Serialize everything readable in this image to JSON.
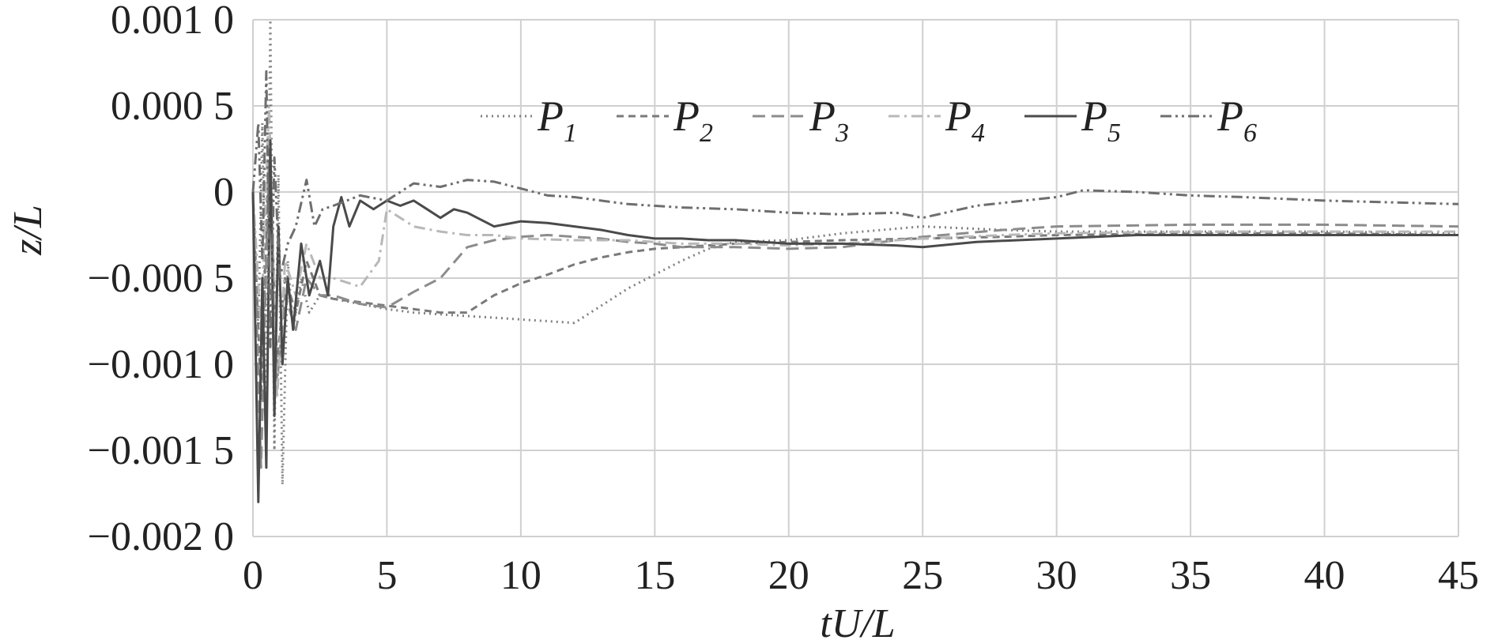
{
  "chart_data": {
    "type": "line",
    "xlabel": "tU/L",
    "ylabel": "z/L",
    "xlim": [
      0,
      45
    ],
    "ylim": [
      -0.002,
      0.001
    ],
    "grid": true,
    "legend_position": "top-center",
    "x_ticks": [
      "0",
      "5",
      "10",
      "15",
      "20",
      "25",
      "30",
      "35",
      "40",
      "45"
    ],
    "y_ticks": [
      "0.001 0",
      "0.000 5",
      "0",
      "−0.000 5",
      "−0.001 0",
      "−0.001 5",
      "−0.002 0"
    ],
    "series": [
      {
        "name": "P",
        "sub": "1",
        "style": "dotted",
        "color": "#808080",
        "x": [
          0,
          0.2,
          0.35,
          0.5,
          0.65,
          0.8,
          0.95,
          1.1,
          1.3,
          1.5,
          1.8,
          2.1,
          2.5,
          3,
          4,
          5,
          6,
          7,
          8,
          9,
          10,
          11,
          12,
          13,
          14,
          15,
          16,
          17,
          18,
          20,
          22,
          25,
          28,
          30,
          35,
          40,
          45
        ],
        "y": [
          0,
          -0.0008,
          0.0004,
          -0.0012,
          0.001,
          -0.0015,
          0.0001,
          -0.0017,
          -0.0004,
          -0.0008,
          -0.0005,
          -0.0007,
          -0.0006,
          -0.00062,
          -0.00065,
          -0.00068,
          -0.0007,
          -0.00071,
          -0.00072,
          -0.00073,
          -0.00074,
          -0.00075,
          -0.00076,
          -0.00066,
          -0.00056,
          -0.00048,
          -0.0004,
          -0.00033,
          -0.00029,
          -0.00028,
          -0.00024,
          -0.0002,
          -0.00022,
          -0.00023,
          -0.00023,
          -0.00023,
          -0.00024
        ]
      },
      {
        "name": "P",
        "sub": "2",
        "style": "dash-short",
        "color": "#7a7a7a",
        "x": [
          0,
          0.3,
          0.6,
          0.9,
          1.2,
          1.6,
          2.0,
          2.5,
          3,
          4,
          5,
          6,
          7,
          8,
          9,
          10,
          11,
          12,
          13,
          14,
          15,
          16,
          17,
          18,
          20,
          22,
          25,
          28,
          30,
          35,
          40,
          45
        ],
        "y": [
          0,
          -0.0012,
          0.0003,
          -0.001,
          -0.0005,
          -0.0007,
          -0.0004,
          -0.0006,
          -0.00062,
          -0.00064,
          -0.00066,
          -0.00068,
          -0.0007,
          -0.0007,
          -0.0006,
          -0.00053,
          -0.00048,
          -0.00042,
          -0.00038,
          -0.00035,
          -0.00033,
          -0.00032,
          -0.00031,
          -0.0003,
          -0.00029,
          -0.00028,
          -0.00027,
          -0.00026,
          -0.00025,
          -0.00024,
          -0.00024,
          -0.00025
        ]
      },
      {
        "name": "P",
        "sub": "3",
        "style": "dash-long",
        "color": "#8c8c8c",
        "x": [
          0,
          0.3,
          0.6,
          0.9,
          1.2,
          1.6,
          2.0,
          2.5,
          3,
          4,
          5,
          6,
          7,
          8,
          9,
          10,
          11,
          12,
          13,
          14,
          15,
          16,
          17,
          18,
          20,
          22,
          25,
          28,
          30,
          35,
          40,
          45
        ],
        "y": [
          0,
          -0.0016,
          0.0002,
          -0.0011,
          -0.0006,
          -0.0008,
          -0.0005,
          -0.0006,
          -0.0006,
          -0.00065,
          -0.00067,
          -0.00058,
          -0.0005,
          -0.00032,
          -0.00028,
          -0.00026,
          -0.00025,
          -0.00026,
          -0.00027,
          -0.00029,
          -0.0003,
          -0.00032,
          -0.00032,
          -0.00032,
          -0.00033,
          -0.00032,
          -0.00026,
          -0.00022,
          -0.0002,
          -0.00019,
          -0.00019,
          -0.0002
        ]
      },
      {
        "name": "P",
        "sub": "4",
        "style": "dash-dot-light",
        "color": "#b8b8b8",
        "x": [
          0,
          0.3,
          0.6,
          0.9,
          1.2,
          1.6,
          2.0,
          2.5,
          3,
          4,
          4.7,
          5,
          5.5,
          6,
          7,
          8,
          9,
          10,
          12,
          14,
          15,
          16,
          18,
          20,
          22,
          25,
          28,
          30,
          35,
          40,
          45
        ],
        "y": [
          0,
          -0.0008,
          0.0005,
          -0.0012,
          -0.0004,
          -0.0006,
          -0.0003,
          -0.0005,
          -0.0005,
          -0.00055,
          -0.0004,
          -0.0001,
          -0.00015,
          -0.0002,
          -0.00023,
          -0.00025,
          -0.00025,
          -0.00027,
          -0.00028,
          -0.00028,
          -0.00029,
          -0.0003,
          -0.0003,
          -0.00031,
          -0.0003,
          -0.00027,
          -0.00025,
          -0.00024,
          -0.00023,
          -0.00023,
          -0.00023
        ]
      },
      {
        "name": "P",
        "sub": "5",
        "style": "solid",
        "color": "#4a4a4a",
        "x": [
          0,
          0.2,
          0.35,
          0.5,
          0.65,
          0.8,
          0.95,
          1.1,
          1.3,
          1.5,
          1.8,
          2.1,
          2.5,
          2.8,
          3.0,
          3.3,
          3.6,
          4,
          4.5,
          5,
          5.5,
          6,
          6.5,
          7,
          7.5,
          8,
          9,
          10,
          11,
          12,
          13,
          14,
          15,
          16,
          17,
          18,
          20,
          22,
          24,
          25,
          27,
          30,
          33,
          35,
          40,
          45
        ],
        "y": [
          0,
          -0.0018,
          -0.0005,
          -0.0016,
          0.0003,
          -0.0013,
          -0.0002,
          -0.001,
          -0.0005,
          -0.0008,
          -0.0003,
          -0.0006,
          -0.0004,
          -0.0006,
          -0.0002,
          -3e-05,
          -0.0002,
          -5e-05,
          -0.0001,
          -5e-05,
          -8e-05,
          -5e-05,
          -0.0001,
          -0.00015,
          -0.0001,
          -0.00012,
          -0.0002,
          -0.00017,
          -0.00018,
          -0.0002,
          -0.00022,
          -0.00025,
          -0.00027,
          -0.00027,
          -0.00028,
          -0.00028,
          -0.0003,
          -0.0003,
          -0.00031,
          -0.00032,
          -0.00029,
          -0.00027,
          -0.00025,
          -0.00025,
          -0.00025,
          -0.00025
        ]
      },
      {
        "name": "P",
        "sub": "6",
        "style": "dash-dot-dot",
        "color": "#6e6e6e",
        "x": [
          0,
          0.2,
          0.35,
          0.5,
          0.65,
          0.8,
          1.0,
          1.3,
          1.6,
          2.0,
          2.3,
          2.6,
          3.0,
          3.5,
          4,
          5,
          6,
          7,
          8,
          9,
          10,
          11,
          12,
          14,
          16,
          18,
          20,
          22,
          24,
          25,
          27,
          30,
          31,
          33,
          35,
          37,
          40,
          45
        ],
        "y": [
          0,
          0.0004,
          -0.0004,
          0.0007,
          -0.0009,
          0.0002,
          -0.0005,
          -0.0003,
          -0.0002,
          7e-05,
          -0.0002,
          -0.0001,
          -8e-05,
          -5e-05,
          -2e-05,
          -5e-05,
          5e-05,
          3e-05,
          7e-05,
          6e-05,
          2e-05,
          -2e-05,
          -3e-05,
          -7e-05,
          -9e-05,
          -0.0001,
          -0.00012,
          -0.00013,
          -0.00012,
          -0.00015,
          -8e-05,
          -3e-05,
          1e-05,
          0,
          -2e-05,
          -3e-05,
          -5e-05,
          -7e-05
        ]
      }
    ]
  }
}
